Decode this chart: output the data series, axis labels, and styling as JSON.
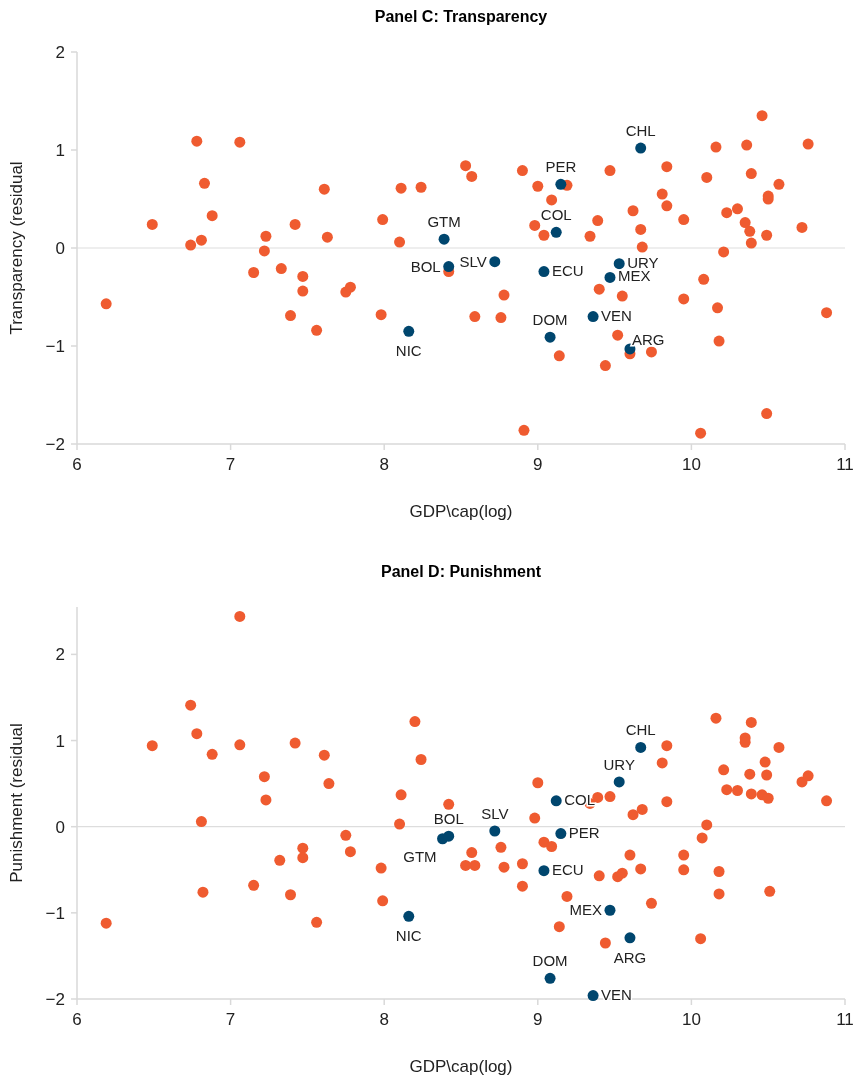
{
  "chart_data": [
    {
      "type": "scatter",
      "title": "Panel C: Transparency",
      "xlabel": "GDP\\cap(log)",
      "ylabel": "Transparency (residual",
      "xlim": [
        6,
        11
      ],
      "xticks": [
        6,
        7,
        8,
        9,
        10,
        11
      ],
      "ylim": [
        -2,
        2
      ],
      "yticks": [
        -2,
        -1,
        0,
        1,
        2
      ],
      "marker": "circle",
      "grid": false,
      "ref_lines": [
        {
          "axis": "y",
          "value": 0,
          "color": "#dddddd"
        }
      ],
      "series": [
        {
          "color": "#ef5b30",
          "x": [
            6.19,
            6.49,
            6.74,
            6.78,
            6.81,
            6.83,
            6.88,
            7.06,
            7.15,
            7.22,
            7.23,
            7.33,
            7.39,
            7.42,
            7.47,
            7.47,
            7.56,
            7.61,
            7.63,
            7.75,
            7.78,
            7.98,
            7.99,
            8.1,
            8.11,
            8.24,
            8.42,
            8.53,
            8.57,
            8.9,
            9.0,
            9.19,
            9.09,
            8.98,
            9.04,
            8.78,
            8.59,
            8.76,
            9.14,
            8.91,
            9.47,
            9.34,
            9.39,
            9.62,
            9.67,
            9.68,
            9.4,
            9.55,
            9.52,
            9.6,
            9.74,
            9.44,
            9.84,
            9.81,
            9.84,
            9.95,
            10.16,
            10.1,
            10.36,
            10.46,
            10.76,
            10.39,
            10.57,
            10.5,
            10.5,
            10.23,
            10.3,
            10.35,
            10.38,
            10.39,
            10.49,
            10.72,
            10.21,
            10.08,
            9.95,
            10.17,
            10.18,
            10.88,
            10.49,
            10.06
          ],
          "values": [
            -0.57,
            0.24,
            0.03,
            1.09,
            0.08,
            0.66,
            0.33,
            1.08,
            -0.25,
            -0.03,
            0.12,
            -0.21,
            -0.69,
            0.24,
            -0.29,
            -0.44,
            -0.84,
            0.6,
            0.11,
            -0.45,
            -0.4,
            -0.68,
            0.29,
            0.06,
            0.61,
            0.62,
            -0.24,
            0.84,
            0.73,
            0.79,
            0.63,
            0.64,
            0.49,
            0.23,
            0.13,
            -0.48,
            -0.7,
            -0.71,
            -1.1,
            -1.86,
            0.79,
            0.12,
            0.28,
            0.38,
            0.19,
            0.01,
            -0.42,
            -0.49,
            -0.89,
            -1.08,
            -1.06,
            -1.2,
            0.83,
            0.55,
            0.43,
            0.29,
            1.03,
            0.72,
            1.05,
            1.35,
            1.06,
            0.76,
            0.65,
            0.53,
            0.5,
            0.36,
            0.4,
            0.26,
            0.17,
            0.05,
            0.13,
            0.21,
            -0.04,
            -0.32,
            -0.52,
            -0.61,
            -0.95,
            -0.66,
            -1.69,
            -1.89
          ]
        },
        {
          "color": "#00466e",
          "x": [
            8.39,
            8.42,
            8.16,
            9.67,
            9.15,
            9.12,
            8.72,
            9.04,
            9.53,
            9.47,
            9.36,
            9.08,
            9.6
          ],
          "values": [
            0.09,
            -0.19,
            -0.85,
            1.02,
            0.65,
            0.16,
            -0.14,
            -0.24,
            -0.16,
            -0.3,
            -0.7,
            -0.91,
            -1.03
          ]
        }
      ],
      "annotations": [
        {
          "text": "GTM",
          "x": 8.39,
          "y": 0.09
        },
        {
          "text": "BOL",
          "x": 8.42,
          "y": -0.19
        },
        {
          "text": "NIC",
          "x": 8.16,
          "y": -0.85
        },
        {
          "text": "CHL",
          "x": 9.67,
          "y": 1.02
        },
        {
          "text": "PER",
          "x": 9.15,
          "y": 0.65
        },
        {
          "text": "COL",
          "x": 9.12,
          "y": 0.16
        },
        {
          "text": "SLV",
          "x": 8.72,
          "y": -0.14
        },
        {
          "text": "ECU",
          "x": 9.04,
          "y": -0.24
        },
        {
          "text": "URY",
          "x": 9.53,
          "y": -0.16
        },
        {
          "text": "MEX",
          "x": 9.47,
          "y": -0.3
        },
        {
          "text": "VEN",
          "x": 9.36,
          "y": -0.7
        },
        {
          "text": "DOM",
          "x": 9.08,
          "y": -0.91
        },
        {
          "text": "ARG",
          "x": 9.6,
          "y": -1.03
        }
      ]
    },
    {
      "type": "scatter",
      "title": "Panel D: Punishment",
      "xlabel": "GDP\\cap(log)",
      "ylabel": "Punishment (residual",
      "xlim": [
        6,
        11
      ],
      "xticks": [
        6,
        7,
        8,
        9,
        10,
        11
      ],
      "ylim": [
        -2,
        2.55
      ],
      "yticks": [
        -2,
        -1,
        0,
        1,
        2
      ],
      "marker": "circle",
      "grid": false,
      "ref_lines": [
        {
          "axis": "y",
          "value": 0,
          "color": "#dddddd"
        }
      ],
      "series": [
        {
          "color": "#ef5b30",
          "x": [
            7.06,
            6.74,
            6.78,
            6.49,
            6.88,
            7.06,
            7.42,
            7.61,
            7.22,
            7.64,
            7.23,
            6.81,
            6.82,
            7.15,
            7.32,
            7.47,
            7.47,
            7.39,
            7.56,
            6.19,
            7.75,
            7.78,
            7.98,
            7.99,
            8.2,
            8.24,
            8.11,
            8.1,
            8.42,
            8.57,
            8.53,
            8.59,
            8.76,
            8.78,
            8.9,
            8.9,
            9.0,
            8.98,
            9.04,
            9.09,
            9.19,
            9.14,
            9.34,
            9.39,
            9.47,
            9.62,
            9.68,
            9.6,
            9.67,
            9.4,
            9.52,
            9.55,
            9.74,
            9.44,
            9.84,
            9.81,
            9.84,
            9.95,
            9.95,
            10.1,
            10.07,
            10.06,
            10.16,
            10.18,
            10.18,
            10.39,
            10.35,
            10.35,
            10.57,
            10.48,
            10.21,
            10.38,
            10.49,
            10.23,
            10.3,
            10.39,
            10.46,
            10.5,
            10.72,
            10.76,
            10.88,
            10.51
          ],
          "values": [
            2.44,
            1.41,
            1.08,
            0.94,
            0.84,
            0.95,
            0.97,
            0.83,
            0.58,
            0.5,
            0.31,
            0.06,
            -0.76,
            -0.68,
            -0.39,
            -0.25,
            -0.36,
            -0.79,
            -1.11,
            -1.12,
            -0.1,
            -0.29,
            -0.48,
            -0.86,
            1.22,
            0.78,
            0.37,
            0.03,
            0.26,
            -0.3,
            -0.45,
            -0.45,
            -0.24,
            -0.47,
            -0.43,
            -0.69,
            0.51,
            0.1,
            -0.18,
            -0.23,
            -0.81,
            -1.16,
            0.27,
            0.34,
            0.35,
            0.14,
            0.2,
            -0.33,
            -0.49,
            -0.57,
            -0.58,
            -0.54,
            -0.89,
            -1.35,
            0.94,
            0.74,
            0.29,
            -0.33,
            -0.5,
            0.02,
            -0.13,
            -1.3,
            1.26,
            -0.52,
            -0.78,
            1.21,
            1.03,
            0.98,
            0.92,
            0.75,
            0.66,
            0.61,
            0.6,
            0.43,
            0.42,
            0.38,
            0.37,
            0.33,
            0.52,
            0.59,
            0.3,
            -0.75
          ]
        },
        {
          "color": "#00466e",
          "x": [
            8.16,
            8.38,
            8.42,
            8.72,
            9.15,
            9.12,
            9.53,
            9.67,
            9.04,
            9.47,
            9.6,
            9.08,
            9.36
          ],
          "values": [
            -1.04,
            -0.14,
            -0.11,
            -0.05,
            -0.08,
            0.3,
            0.52,
            0.92,
            -0.51,
            -0.97,
            -1.29,
            -1.76,
            -1.96
          ]
        }
      ],
      "annotations": [
        {
          "text": "NIC",
          "x": 8.16,
          "y": -1.04
        },
        {
          "text": "GTM",
          "x": 8.38,
          "y": -0.14
        },
        {
          "text": "BOL",
          "x": 8.42,
          "y": -0.11
        },
        {
          "text": "SLV",
          "x": 8.72,
          "y": -0.05
        },
        {
          "text": "PER",
          "x": 9.15,
          "y": -0.08
        },
        {
          "text": "COL",
          "x": 9.12,
          "y": 0.3
        },
        {
          "text": "URY",
          "x": 9.53,
          "y": 0.52
        },
        {
          "text": "CHL",
          "x": 9.67,
          "y": 0.92
        },
        {
          "text": "ECU",
          "x": 9.04,
          "y": -0.51
        },
        {
          "text": "MEX",
          "x": 9.47,
          "y": -0.97
        },
        {
          "text": "ARG",
          "x": 9.6,
          "y": -1.29
        },
        {
          "text": "DOM",
          "x": 9.08,
          "y": -1.76
        },
        {
          "text": "VEN",
          "x": 9.36,
          "y": -1.96
        }
      ]
    }
  ]
}
